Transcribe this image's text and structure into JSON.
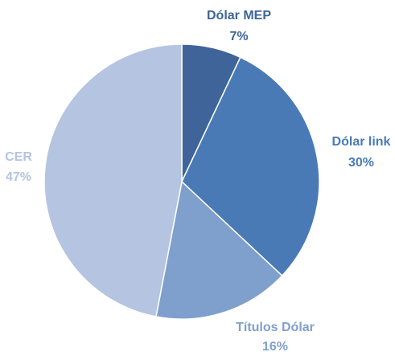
{
  "chart_data": {
    "type": "pie",
    "title": "",
    "categories": [
      "Dólar MEP",
      "Dólar link",
      "Títulos Dólar",
      "CER"
    ],
    "values": [
      7,
      30,
      16,
      47
    ],
    "value_labels": [
      "7%",
      "30%",
      "16%",
      "47%"
    ],
    "colors": [
      "#3f6499",
      "#4a7ab6",
      "#7f9fcd",
      "#b4c4e1"
    ],
    "label_colors": [
      "#3f6499",
      "#4a7ab6",
      "#7f9fcd",
      "#b4c4e1"
    ],
    "start_angle_deg": 0,
    "direction": "clockwise",
    "legend": "none",
    "labels_placement": "outside"
  }
}
